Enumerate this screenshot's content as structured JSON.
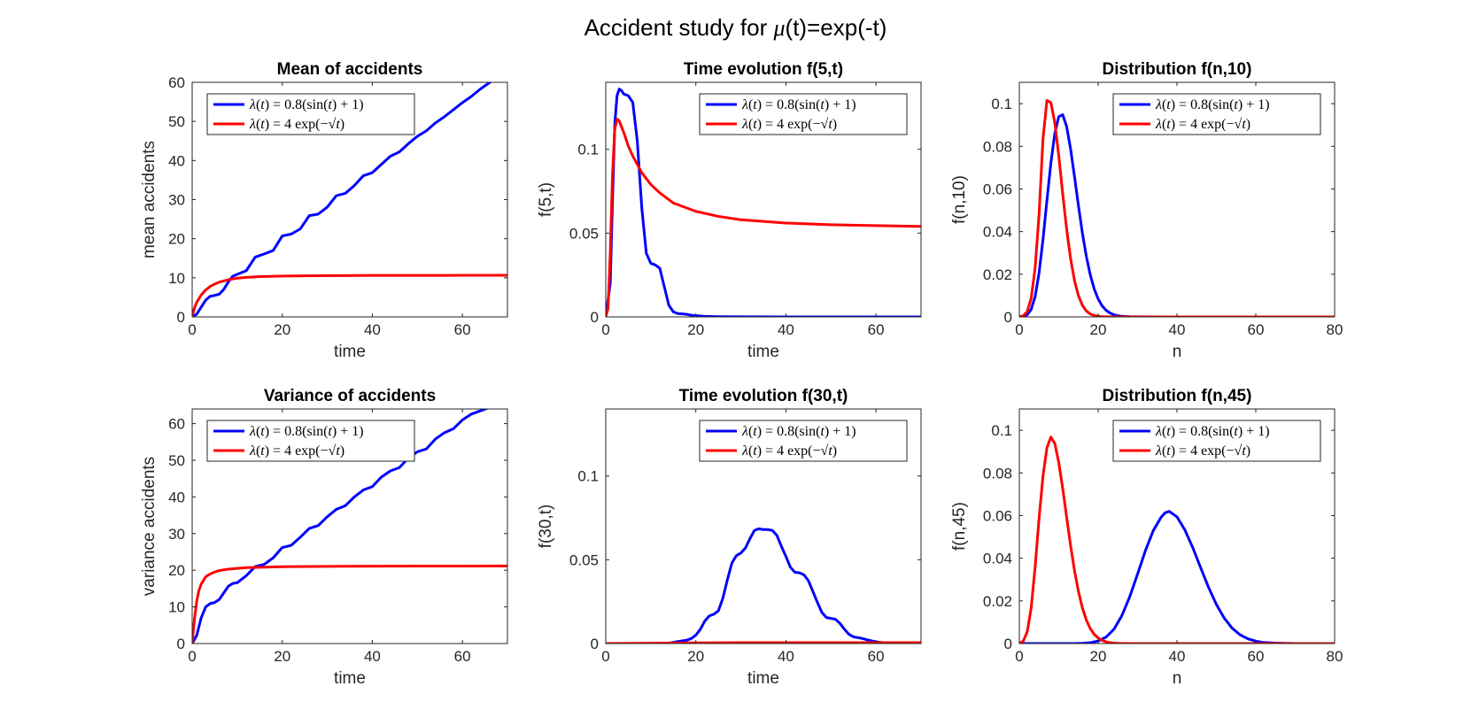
{
  "figure": {
    "title_prefix": "Accident study for ",
    "title_symbol": "μ",
    "title_suffix": "(t)=exp(-t)"
  },
  "chart_data": [
    {
      "type": "line",
      "title": "Mean of accidents",
      "xlabel": "time",
      "ylabel": "mean accidents",
      "xlim": [
        0,
        70
      ],
      "ylim": [
        0,
        60
      ],
      "xticks": [
        0,
        20,
        40,
        60
      ],
      "yticks": [
        0,
        10,
        20,
        30,
        40,
        50,
        60
      ],
      "grid": false,
      "legend": "top-left",
      "series": [
        {
          "name": "λ(t) = 0.8(sin(t) + 1)",
          "color": "#0000ff",
          "x": [
            0,
            1,
            2,
            3,
            4,
            5,
            6,
            7,
            8,
            9,
            10,
            12,
            14,
            16,
            18,
            20,
            22,
            24,
            26,
            28,
            30,
            32,
            34,
            36,
            38,
            40,
            42,
            44,
            46,
            48,
            50,
            52,
            54,
            56,
            58,
            60,
            62,
            64,
            66,
            68,
            70
          ],
          "y": [
            0,
            0.7,
            2.5,
            4.3,
            5.3,
            5.5,
            5.8,
            7.0,
            8.9,
            10.4,
            10.9,
            11.8,
            15.3,
            16.1,
            17.0,
            20.7,
            21.2,
            22.5,
            25.9,
            26.3,
            28.1,
            31.0,
            31.6,
            33.6,
            36.1,
            36.9,
            39.0,
            41.1,
            42.2,
            44.3,
            46.2,
            47.6,
            49.6,
            51.2,
            53.0,
            54.8,
            56.4,
            58.3,
            59.9,
            61.6,
            62.9
          ]
        },
        {
          "name": "λ(t) = 4exp(−√t)",
          "color": "#ff0000",
          "x": [
            0,
            0.5,
            1,
            2,
            3,
            4,
            5,
            6,
            8,
            10,
            12,
            15,
            20,
            25,
            30,
            40,
            50,
            60,
            70
          ],
          "y": [
            0,
            2.3,
            3.7,
            5.6,
            6.9,
            7.8,
            8.4,
            8.9,
            9.5,
            9.9,
            10.1,
            10.3,
            10.45,
            10.5,
            10.55,
            10.6,
            10.62,
            10.63,
            10.64
          ]
        }
      ]
    },
    {
      "type": "line",
      "title": "Time evolution f(5,t)",
      "xlabel": "time",
      "ylabel": "f(5,t)",
      "xlim": [
        0,
        70
      ],
      "ylim": [
        0,
        0.14
      ],
      "xticks": [
        0,
        20,
        40,
        60
      ],
      "yticks": [
        0,
        0.05,
        0.1
      ],
      "grid": false,
      "legend": "top-right",
      "series": [
        {
          "name": "λ(t) = 0.8(sin(t) + 1)",
          "color": "#0000ff",
          "x": [
            0,
            1,
            1.5,
            2,
            2.5,
            3,
            3.5,
            4,
            5,
            6,
            7,
            8,
            9,
            10,
            11,
            12,
            13,
            14,
            15,
            16,
            17,
            18,
            19,
            20,
            22,
            25,
            30,
            40,
            70
          ],
          "y": [
            0,
            0.02,
            0.07,
            0.115,
            0.132,
            0.136,
            0.135,
            0.133,
            0.132,
            0.128,
            0.105,
            0.065,
            0.038,
            0.032,
            0.031,
            0.029,
            0.018,
            0.007,
            0.003,
            0.002,
            0.0018,
            0.0015,
            0.001,
            0.0007,
            0.0003,
            0.0001,
            5e-05,
            1e-05,
            0.0
          ]
        },
        {
          "name": "λ(t) = 4exp(−√t)",
          "color": "#ff0000",
          "x": [
            0,
            0.5,
            1,
            1.5,
            2,
            2.5,
            3,
            4,
            5,
            6,
            8,
            10,
            12,
            15,
            20,
            25,
            30,
            40,
            50,
            60,
            70
          ],
          "y": [
            0,
            0.005,
            0.038,
            0.085,
            0.112,
            0.118,
            0.117,
            0.11,
            0.102,
            0.096,
            0.086,
            0.079,
            0.074,
            0.068,
            0.063,
            0.06,
            0.058,
            0.056,
            0.055,
            0.0545,
            0.054
          ]
        }
      ]
    },
    {
      "type": "line",
      "title": "Distribution f(n,10)",
      "xlabel": "n",
      "ylabel": "f(n,10)",
      "xlim": [
        0,
        80
      ],
      "ylim": [
        0,
        0.11
      ],
      "xticks": [
        0,
        20,
        40,
        60,
        80
      ],
      "yticks": [
        0,
        0.02,
        0.04,
        0.06,
        0.08,
        0.1
      ],
      "grid": false,
      "legend": "top-right",
      "series": [
        {
          "name": "λ(t) = 0.8(sin(t) + 1)",
          "color": "#0000ff",
          "x": [
            0,
            1,
            2,
            3,
            4,
            5,
            6,
            7,
            8,
            9,
            10,
            11,
            12,
            13,
            14,
            15,
            16,
            17,
            18,
            19,
            20,
            21,
            22,
            23,
            24,
            25,
            26,
            28,
            30,
            35,
            40,
            80
          ],
          "y": [
            0,
            0.00018,
            0.001,
            0.0035,
            0.0095,
            0.0205,
            0.0363,
            0.0546,
            0.0721,
            0.086,
            0.0939,
            0.0948,
            0.0893,
            0.0788,
            0.0658,
            0.0521,
            0.0393,
            0.0284,
            0.0197,
            0.0131,
            0.0084,
            0.0052,
            0.0031,
            0.0018,
            0.001,
            0.0005,
            0.0003,
            0.0001,
            3e-05,
            0.0,
            0.0,
            0.0
          ]
        },
        {
          "name": "λ(t) = 4exp(−√t)",
          "color": "#ff0000",
          "x": [
            0,
            1,
            2,
            3,
            4,
            5,
            6,
            7,
            8,
            9,
            10,
            11,
            12,
            13,
            14,
            15,
            16,
            17,
            18,
            19,
            20,
            21,
            22,
            23,
            24,
            25,
            26,
            28,
            30,
            35,
            40,
            80
          ],
          "y": [
            2e-05,
            0.0005,
            0.0025,
            0.0087,
            0.0228,
            0.0478,
            0.0834,
            0.1015,
            0.1005,
            0.0911,
            0.0757,
            0.0578,
            0.0412,
            0.0274,
            0.017,
            0.0099,
            0.0054,
            0.0028,
            0.0014,
            0.0006,
            0.0003,
            0.0001,
            5e-05,
            0.0,
            0.0,
            0.0,
            0.0,
            0.0,
            0.0,
            0.0,
            0.0,
            0.0
          ]
        }
      ]
    },
    {
      "type": "line",
      "title": "Variance of accidents",
      "xlabel": "time",
      "ylabel": "variance accidents",
      "xlim": [
        0,
        70
      ],
      "ylim": [
        0,
        64
      ],
      "xticks": [
        0,
        20,
        40,
        60
      ],
      "yticks": [
        0,
        10,
        20,
        30,
        40,
        50,
        60
      ],
      "grid": false,
      "legend": "top-left",
      "series": [
        {
          "name": "λ(t) = 0.8(sin(t) + 1)",
          "color": "#0000ff",
          "x": [
            0,
            1,
            2,
            3,
            4,
            5,
            6,
            7,
            8,
            9,
            10,
            12,
            14,
            16,
            18,
            20,
            22,
            24,
            26,
            28,
            30,
            32,
            34,
            36,
            38,
            40,
            42,
            44,
            46,
            48,
            50,
            52,
            54,
            56,
            58,
            60,
            62,
            64,
            66,
            68,
            70
          ],
          "y": [
            0,
            2.2,
            7.0,
            10.0,
            10.9,
            11.2,
            12.0,
            13.8,
            15.6,
            16.4,
            16.6,
            18.5,
            21.0,
            21.6,
            23.4,
            26.2,
            26.8,
            29.0,
            31.4,
            32.2,
            34.6,
            36.6,
            37.6,
            40.0,
            41.9,
            42.8,
            45.4,
            47.1,
            48.0,
            50.6,
            52.3,
            53.1,
            55.8,
            57.5,
            58.6,
            61.0,
            62.6,
            63.5,
            64.4,
            65.8,
            66.6
          ]
        },
        {
          "name": "λ(t) = 4exp(−√t)",
          "color": "#ff0000",
          "x": [
            0,
            0.5,
            1,
            1.5,
            2,
            3,
            4,
            5,
            6,
            8,
            10,
            12,
            15,
            20,
            25,
            30,
            40,
            50,
            60,
            70
          ],
          "y": [
            0,
            6.5,
            11.5,
            14.5,
            16.2,
            18.2,
            19.0,
            19.5,
            19.9,
            20.3,
            20.5,
            20.7,
            20.8,
            20.95,
            21.0,
            21.05,
            21.1,
            21.12,
            21.13,
            21.15
          ]
        }
      ]
    },
    {
      "type": "line",
      "title": "Time evolution f(30,t)",
      "xlabel": "time",
      "ylabel": "f(30,t)",
      "xlim": [
        0,
        70
      ],
      "ylim": [
        0,
        0.14
      ],
      "xticks": [
        0,
        20,
        40,
        60
      ],
      "yticks": [
        0,
        0.05,
        0.1
      ],
      "grid": false,
      "legend": "top-right",
      "series": [
        {
          "name": "λ(t) = 0.8(sin(t) + 1)",
          "color": "#0000ff",
          "x": [
            0,
            10,
            14,
            16,
            18,
            19,
            20,
            21,
            22,
            23,
            24,
            25,
            26,
            27,
            28,
            29,
            30,
            31,
            32,
            33,
            34,
            35,
            36,
            37,
            38,
            39,
            40,
            41,
            42,
            43,
            44,
            45,
            46,
            47,
            48,
            49,
            50,
            51,
            52,
            53,
            54,
            55,
            56,
            57,
            58,
            60,
            62,
            65,
            70
          ],
          "y": [
            0,
            0.0,
            0.0002,
            0.0012,
            0.002,
            0.003,
            0.005,
            0.0085,
            0.0135,
            0.0165,
            0.0175,
            0.0195,
            0.027,
            0.038,
            0.048,
            0.0525,
            0.054,
            0.057,
            0.0625,
            0.0675,
            0.0685,
            0.068,
            0.068,
            0.0675,
            0.0645,
            0.058,
            0.052,
            0.0455,
            0.0425,
            0.0422,
            0.041,
            0.0375,
            0.031,
            0.0245,
            0.0185,
            0.0155,
            0.015,
            0.0145,
            0.012,
            0.0085,
            0.0055,
            0.004,
            0.0035,
            0.003,
            0.0022,
            0.001,
            0.0004,
            0.0001,
            0.0
          ]
        },
        {
          "name": "λ(t) = 4exp(−√t)",
          "color": "#ff0000",
          "x": [
            0,
            10,
            20,
            30,
            40,
            50,
            60,
            70
          ],
          "y": [
            0,
            0.0002,
            0.0004,
            0.0005,
            0.0005,
            0.0005,
            0.0005,
            0.0005
          ]
        }
      ]
    },
    {
      "type": "line",
      "title": "Distribution f(n,45)",
      "xlabel": "n",
      "ylabel": "f(n,45)",
      "xlim": [
        0,
        80
      ],
      "ylim": [
        0,
        0.11
      ],
      "xticks": [
        0,
        20,
        40,
        60,
        80
      ],
      "yticks": [
        0,
        0.02,
        0.04,
        0.06,
        0.08,
        0.1
      ],
      "grid": false,
      "legend": "top-right",
      "series": [
        {
          "name": "λ(t) = 0.8(sin(t) + 1)",
          "color": "#0000ff",
          "x": [
            0,
            14,
            16,
            18,
            20,
            22,
            24,
            26,
            28,
            30,
            32,
            34,
            36,
            37,
            38,
            40,
            42,
            44,
            46,
            48,
            50,
            52,
            54,
            56,
            58,
            60,
            62,
            65,
            70,
            80
          ],
          "y": [
            0,
            0.0,
            0.0001,
            0.0004,
            0.0012,
            0.003,
            0.0067,
            0.013,
            0.0219,
            0.0326,
            0.0436,
            0.053,
            0.0593,
            0.0613,
            0.062,
            0.0594,
            0.0533,
            0.045,
            0.0356,
            0.0264,
            0.0183,
            0.0119,
            0.0072,
            0.0041,
            0.0022,
            0.0011,
            0.0005,
            0.0002,
            0.0,
            0.0
          ]
        },
        {
          "name": "λ(t) = 4exp(−√t)",
          "color": "#ff0000",
          "x": [
            0,
            1,
            2,
            3,
            4,
            5,
            6,
            7,
            8,
            9,
            10,
            11,
            12,
            13,
            14,
            15,
            16,
            17,
            18,
            19,
            20,
            21,
            22,
            23,
            24,
            25,
            26,
            28,
            30,
            35,
            40,
            80
          ],
          "y": [
            0.0001,
            0.0011,
            0.0055,
            0.0166,
            0.0357,
            0.0586,
            0.0785,
            0.0918,
            0.0968,
            0.0938,
            0.0849,
            0.0728,
            0.0593,
            0.046,
            0.0342,
            0.0244,
            0.0167,
            0.011,
            0.007,
            0.0043,
            0.0026,
            0.0015,
            0.0008,
            0.0004,
            0.0002,
            0.0001,
            5e-05,
            0.0,
            0.0,
            0.0,
            0.0,
            0.0
          ]
        }
      ]
    }
  ]
}
